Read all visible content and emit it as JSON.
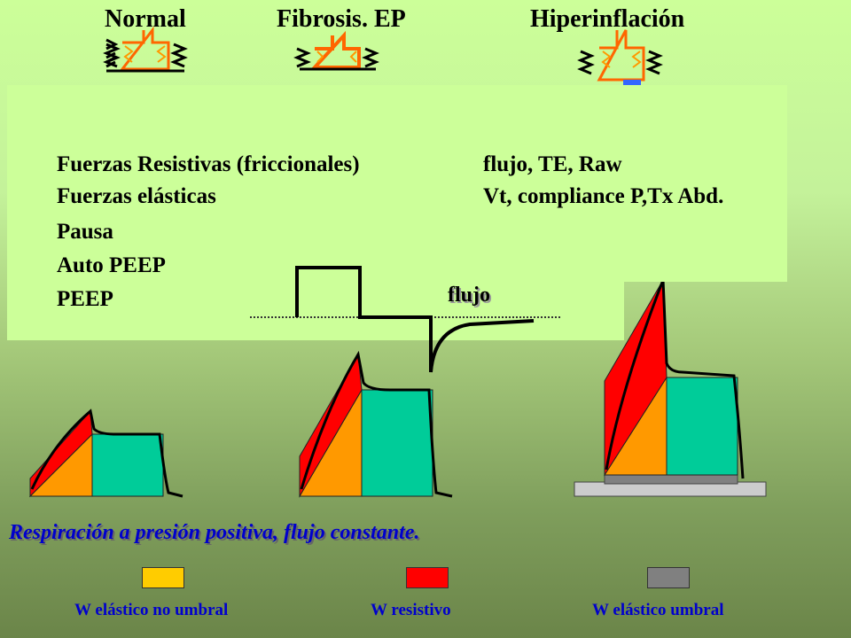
{
  "titles": {
    "normal": "Normal",
    "fibrosis": "Fibrosis. EP",
    "hiperinflacion": "Hiperinflación"
  },
  "panel": {
    "left_lines": [
      "Fuerzas Resistivas (friccionales)",
      "Fuerzas elásticas",
      "Pausa",
      "Auto PEEP",
      "PEEP"
    ],
    "right_lines": [
      "flujo, TE, Raw",
      "Vt, compliance P,Tx Abd."
    ]
  },
  "flow_label": "flujo",
  "caption": "Respiración a presión positiva, flujo constante.",
  "legend": [
    {
      "label": "W elástico no umbral",
      "color": "#ffcc00"
    },
    {
      "label": "W resistivo",
      "color": "#ff0000"
    },
    {
      "label": "W elástico umbral",
      "color": "#808080"
    }
  ],
  "colors": {
    "orange": "#ff9900",
    "red": "#ff0000",
    "teal": "#00cc99",
    "gray": "#808080",
    "panel": "#ccff99",
    "caption": "#0000cc"
  }
}
